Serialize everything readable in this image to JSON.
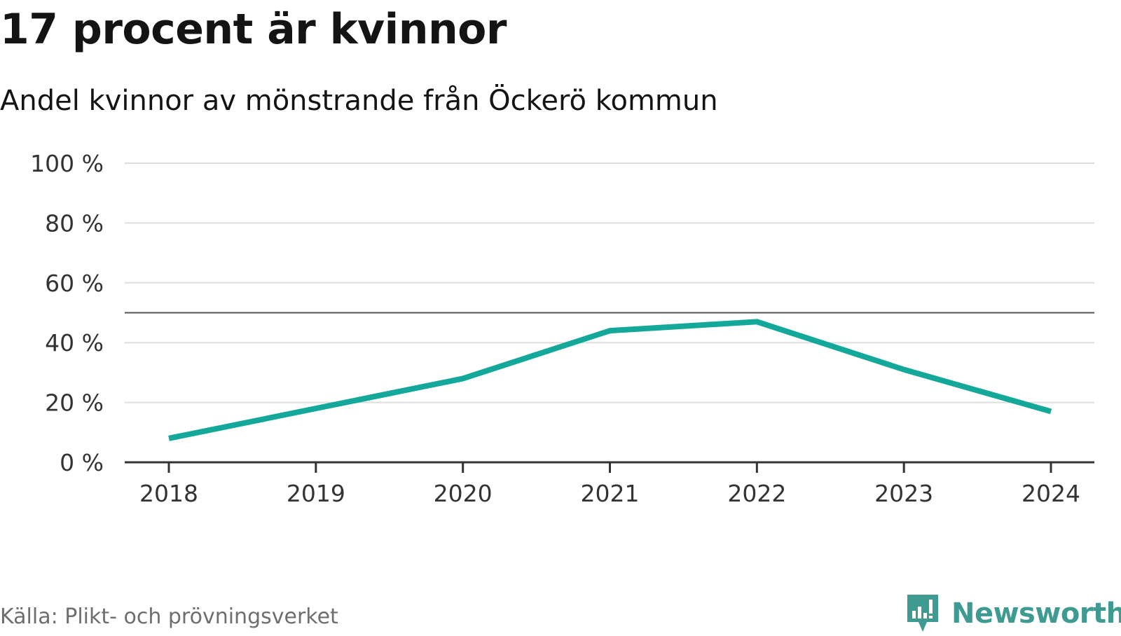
{
  "header": {
    "title": "17 procent är kvinnor",
    "subtitle": "Andel kvinnor av mönstrande från Öckerö kommun"
  },
  "footer": {
    "source": "Källa: Plikt- och prövningsverket",
    "brand": "Newsworthy"
  },
  "colors": {
    "line": "#14a89a",
    "grid": "#dddddd",
    "axis": "#333333",
    "reference": "#555555",
    "brand": "#3f9b91"
  },
  "chart_data": {
    "type": "line",
    "title": "17 procent är kvinnor",
    "subtitle": "Andel kvinnor av mönstrande från Öckerö kommun",
    "xlabel": "",
    "ylabel": "",
    "x": [
      "2018",
      "2019",
      "2020",
      "2021",
      "2022",
      "2023",
      "2024"
    ],
    "series": [
      {
        "name": "Andel kvinnor",
        "values": [
          8,
          18,
          28,
          44,
          47,
          31,
          17
        ]
      }
    ],
    "ylim": [
      0,
      100
    ],
    "yticks": [
      0,
      20,
      40,
      60,
      80,
      100
    ],
    "ytick_labels": [
      "0 %",
      "20 %",
      "40 %",
      "60 %",
      "80 %",
      "100 %"
    ],
    "reference_line": 50,
    "grid": true,
    "legend": "none"
  }
}
